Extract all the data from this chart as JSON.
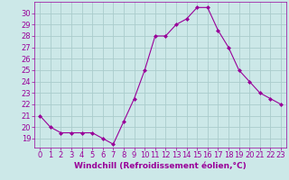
{
  "x": [
    0,
    1,
    2,
    3,
    4,
    5,
    6,
    7,
    8,
    9,
    10,
    11,
    12,
    13,
    14,
    15,
    16,
    17,
    18,
    19,
    20,
    21,
    22,
    23
  ],
  "y": [
    21,
    20,
    19.5,
    19.5,
    19.5,
    19.5,
    19,
    18.5,
    20.5,
    22.5,
    25,
    28,
    28,
    29,
    29.5,
    30.5,
    30.5,
    28.5,
    27,
    25,
    24,
    23,
    22.5,
    22
  ],
  "line_color": "#990099",
  "marker": "D",
  "marker_size": 2,
  "bg_color": "#cce8e8",
  "grid_color": "#aacccc",
  "xlabel": "Windchill (Refroidissement éolien,°C)",
  "xlabel_color": "#990099",
  "ylim": [
    18.2,
    31.0
  ],
  "yticks": [
    19,
    20,
    21,
    22,
    23,
    24,
    25,
    26,
    27,
    28,
    29,
    30
  ],
  "xlim": [
    -0.5,
    23.5
  ],
  "tick_color": "#990099",
  "tick_fontsize": 6,
  "xlabel_fontsize": 6.5
}
